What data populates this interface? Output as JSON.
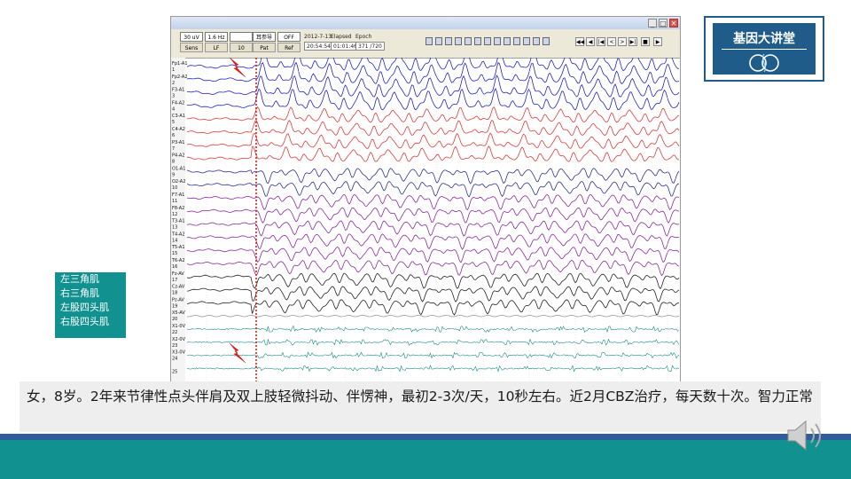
{
  "logo": {
    "text": "基因大讲堂"
  },
  "app": {
    "window_buttons": [
      "_",
      "□",
      "✕"
    ],
    "controls": [
      {
        "value": "30 uV",
        "button": "Sens"
      },
      {
        "value": "1.6 Hz",
        "button": "LF"
      },
      {
        "value": "",
        "button": "10"
      },
      {
        "value": "耳参导",
        "button": "Pat"
      },
      {
        "value": "OFF",
        "button": "Ref"
      }
    ],
    "info": [
      {
        "label": "2012-7-13",
        "value": "20:54:54"
      },
      {
        "label": "Elapsed",
        "value": "01:01:46"
      },
      {
        "label": "Epoch",
        "value": "371 /720"
      }
    ],
    "nav_buttons": [
      "◀◀",
      "◀",
      "|◀",
      "<",
      ">",
      "▶|",
      "■",
      "▶"
    ]
  },
  "eeg": {
    "channels": [
      {
        "name": "Fp1-A1",
        "num": "1",
        "color": "#2222c8"
      },
      {
        "name": "Fp2-A2",
        "num": "2",
        "color": "#2222c8"
      },
      {
        "name": "F3-A1",
        "num": "3",
        "color": "#2222c8"
      },
      {
        "name": "F4-A2",
        "num": "4",
        "color": "#2222c8"
      },
      {
        "name": "C3-A1",
        "num": "5",
        "color": "#e03a3a"
      },
      {
        "name": "C4-A2",
        "num": "6",
        "color": "#e03a3a"
      },
      {
        "name": "P3-A1",
        "num": "7",
        "color": "#e03a3a"
      },
      {
        "name": "P4-A2",
        "num": "8",
        "color": "#e03a3a"
      },
      {
        "name": "O1-A1",
        "num": "9",
        "color": "#303090"
      },
      {
        "name": "O2-A2",
        "num": "10",
        "color": "#303090"
      },
      {
        "name": "F7-A1",
        "num": "11",
        "color": "#8a2aa0"
      },
      {
        "name": "F8-A2",
        "num": "12",
        "color": "#8a2aa0"
      },
      {
        "name": "T3-A1",
        "num": "13",
        "color": "#8a2aa0"
      },
      {
        "name": "T4-A2",
        "num": "14",
        "color": "#8a2aa0"
      },
      {
        "name": "T5-A1",
        "num": "15",
        "color": "#8a2aa0"
      },
      {
        "name": "T6-A2",
        "num": "16",
        "color": "#8a2aa0"
      },
      {
        "name": "Fz-AV",
        "num": "17",
        "color": "#222222"
      },
      {
        "name": "Cz-AV",
        "num": "18",
        "color": "#222222"
      },
      {
        "name": "Pz-AV",
        "num": "19",
        "color": "#222222"
      },
      {
        "name": "X5-AV",
        "num": "20",
        "color": "#999999"
      },
      {
        "name": "X1-0V",
        "num": "22",
        "color": "#1a8a86"
      },
      {
        "name": "X2-0V",
        "num": "23",
        "color": "#1a8a86"
      },
      {
        "name": "X3-0V",
        "num": "24",
        "color": "#1a8a86"
      },
      {
        "name": "",
        "num": "25",
        "color": "#1a8a86"
      }
    ]
  },
  "legend": {
    "items": [
      "左三角肌",
      "右三角肌",
      "左股四头肌",
      "右股四头肌"
    ]
  },
  "caption": {
    "text": "女，8岁。2年来节律性点头伴肩及双上肢轻微抖动、伴愣神，最初2-3次/天，10秒左右。近2月CBZ治疗，每天数十次。智力正常"
  },
  "colors": {
    "accent": "#11918f",
    "brand": "#1f5c8a",
    "band": "#2f5d9b",
    "marker": "#e02020"
  }
}
